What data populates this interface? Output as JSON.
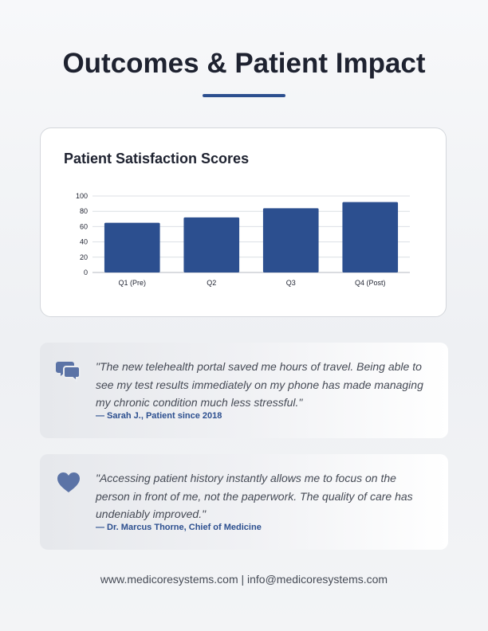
{
  "page": {
    "title": "Outcomes & Patient Impact"
  },
  "chart_card": {
    "title": "Patient Satisfaction Scores"
  },
  "chart_data": {
    "type": "bar",
    "title": "Patient Satisfaction Scores",
    "categories": [
      "Q1 (Pre)",
      "Q2",
      "Q3",
      "Q4 (Post)"
    ],
    "values": [
      65,
      72,
      84,
      92
    ],
    "ylim": [
      0,
      100
    ],
    "yticks": [
      0,
      20,
      40,
      60,
      80,
      100
    ],
    "grid": true,
    "bar_color": "#2c4f8f",
    "xlabel": "",
    "ylabel": ""
  },
  "testimonials": [
    {
      "icon": "speech-bubbles-icon",
      "quote": "\"The new telehealth portal saved me hours of travel. Being able to see my test results immediately on my phone has made managing my chronic condition much less stressful.\"",
      "author": "— Sarah J., Patient since 2018"
    },
    {
      "icon": "heart-icon",
      "quote": "\"Accessing patient history instantly allows me to focus on the person in front of me, not the paperwork. The quality of care has undeniably improved.\"",
      "author": "— Dr. Marcus Thorne, Chief of Medicine"
    }
  ],
  "footer": {
    "text": "www.medicoresystems.com | info@medicoresystems.com"
  },
  "colors": {
    "accent": "#2c4f8f",
    "icon": "#5b73a6",
    "text": "#1e2230",
    "muted_text": "#454a55"
  }
}
